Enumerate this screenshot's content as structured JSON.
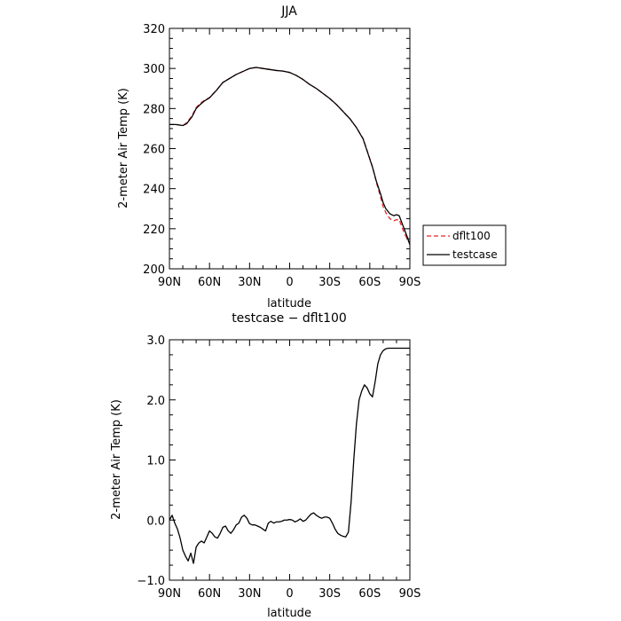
{
  "chart_data": [
    {
      "type": "line",
      "title": "JJA",
      "xlabel": "latitude",
      "ylabel": "2-meter Air Temp (K)",
      "ylim": [
        200,
        320
      ],
      "xlim": [
        90,
        -90
      ],
      "x_ticks": [
        90,
        60,
        30,
        0,
        -30,
        -60,
        -90
      ],
      "x_tick_labels": [
        "90N",
        "60N",
        "30N",
        "0",
        "30S",
        "60S",
        "90S"
      ],
      "y_ticks": [
        200,
        220,
        240,
        260,
        280,
        300,
        320
      ],
      "y_tick_labels": [
        "200",
        "220",
        "240",
        "260",
        "280",
        "300",
        "320"
      ],
      "legend": {
        "placement": "right",
        "entries": [
          "dflt100",
          "testcase"
        ]
      },
      "grid": false,
      "series": [
        {
          "name": "dflt100",
          "color": "#e8262b",
          "dash": true,
          "x": [
            90,
            85,
            80,
            77,
            73,
            70,
            67,
            64,
            60,
            55,
            50,
            45,
            40,
            35,
            30,
            25,
            20,
            15,
            10,
            5,
            0,
            -5,
            -10,
            -15,
            -20,
            -25,
            -30,
            -35,
            -40,
            -45,
            -50,
            -55,
            -58,
            -62,
            -65,
            -68,
            -70,
            -72,
            -75,
            -78,
            -80,
            -82,
            -84,
            -86,
            -88,
            -90
          ],
          "y": [
            272,
            272,
            271.5,
            273,
            276.5,
            280.5,
            282.5,
            284,
            285.5,
            289,
            293,
            295,
            297,
            298.5,
            300,
            300.5,
            300,
            299.5,
            299,
            298.7,
            298,
            296.5,
            294.5,
            292,
            290,
            287.5,
            285,
            282,
            278.5,
            275,
            270.5,
            265,
            259,
            251,
            243,
            236,
            231,
            228,
            225,
            224,
            224.5,
            224.5,
            221,
            217.5,
            215,
            212.5
          ]
        },
        {
          "name": "testcase",
          "color": "#000000",
          "dash": false,
          "x": [
            90,
            85,
            80,
            77,
            73,
            70,
            67,
            64,
            60,
            55,
            50,
            45,
            40,
            35,
            30,
            25,
            20,
            15,
            10,
            5,
            0,
            -5,
            -10,
            -15,
            -20,
            -25,
            -30,
            -35,
            -40,
            -45,
            -50,
            -55,
            -58,
            -62,
            -65,
            -68,
            -70,
            -72,
            -75,
            -78,
            -80,
            -82,
            -84,
            -86,
            -88,
            -90
          ],
          "y": [
            272,
            272,
            271.5,
            272.5,
            276,
            280,
            282,
            283.7,
            285.3,
            288.9,
            293,
            295,
            297,
            298.5,
            300,
            300.5,
            300,
            299.5,
            299,
            298.7,
            298,
            296.5,
            294.5,
            292,
            290,
            287.5,
            285,
            282,
            278.5,
            275,
            270.5,
            264.8,
            258.8,
            250.8,
            243.5,
            237.5,
            233,
            230,
            227.5,
            226.5,
            227,
            226.5,
            223,
            219.5,
            216,
            212
          ]
        }
      ]
    },
    {
      "type": "line",
      "title": "testcase − dflt100",
      "xlabel": "latitude",
      "ylabel": "2-meter Air Temp (K)",
      "ylim": [
        -1.0,
        3.0
      ],
      "xlim": [
        90,
        -90
      ],
      "x_ticks": [
        90,
        60,
        30,
        0,
        -30,
        -60,
        -90
      ],
      "x_tick_labels": [
        "90N",
        "60N",
        "30N",
        "0",
        "30S",
        "60S",
        "90S"
      ],
      "y_ticks": [
        -1.0,
        0.0,
        1.0,
        2.0,
        3.0
      ],
      "y_tick_labels": [
        "−1.0",
        "0.0",
        "1.0",
        "2.0",
        "3.0"
      ],
      "grid": false,
      "series": [
        {
          "name": "testcase − dflt100",
          "color": "#000000",
          "dash": false,
          "x": [
            90,
            88,
            86,
            84,
            82,
            80,
            78,
            76,
            74,
            72,
            70,
            68,
            66,
            64,
            62,
            60,
            58,
            56,
            54,
            52,
            50,
            48,
            46,
            44,
            42,
            40,
            38,
            36,
            34,
            32,
            30,
            28,
            26,
            24,
            22,
            20,
            18,
            16,
            14,
            12,
            10,
            8,
            6,
            4,
            2,
            0,
            -2,
            -4,
            -6,
            -8,
            -10,
            -12,
            -14,
            -16,
            -18,
            -20,
            -22,
            -24,
            -26,
            -28,
            -30,
            -32,
            -34,
            -36,
            -38,
            -40,
            -42,
            -44,
            -46,
            -48,
            -50,
            -52,
            -54,
            -56,
            -58,
            -60,
            -62,
            -64,
            -66,
            -68,
            -70,
            -72,
            -74,
            -76,
            -78,
            -80,
            -82,
            -84,
            -86,
            -88,
            -90
          ],
          "y": [
            0.0,
            0.08,
            -0.05,
            -0.15,
            -0.3,
            -0.5,
            -0.6,
            -0.68,
            -0.55,
            -0.72,
            -0.45,
            -0.38,
            -0.35,
            -0.38,
            -0.28,
            -0.18,
            -0.22,
            -0.28,
            -0.3,
            -0.22,
            -0.12,
            -0.1,
            -0.18,
            -0.22,
            -0.16,
            -0.08,
            -0.05,
            0.05,
            0.08,
            0.03,
            -0.06,
            -0.08,
            -0.08,
            -0.1,
            -0.12,
            -0.15,
            -0.18,
            -0.05,
            -0.02,
            -0.05,
            -0.03,
            -0.03,
            -0.02,
            0.0,
            0.0,
            0.01,
            0.0,
            -0.03,
            -0.01,
            0.02,
            -0.02,
            0.0,
            0.05,
            0.1,
            0.12,
            0.08,
            0.05,
            0.03,
            0.05,
            0.05,
            0.03,
            -0.05,
            -0.15,
            -0.22,
            -0.25,
            -0.27,
            -0.28,
            -0.2,
            0.3,
            1.0,
            1.6,
            2.0,
            2.15,
            2.25,
            2.2,
            2.1,
            2.05,
            2.3,
            2.6,
            2.75,
            2.82,
            2.85,
            2.86,
            2.86,
            2.86,
            2.86,
            2.86,
            2.86,
            2.86,
            2.86,
            2.86
          ]
        }
      ]
    }
  ]
}
